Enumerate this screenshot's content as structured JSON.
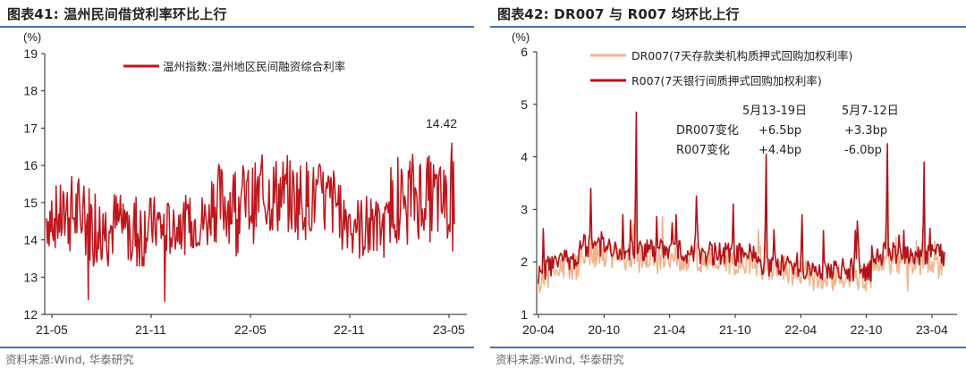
{
  "left": {
    "title": "图表41:  温州民间借贷利率环比上行",
    "source": "资料来源:Wind, 华泰研究",
    "chart_data": {
      "type": "line",
      "unit": "(%)",
      "x_ticks": [
        "21-05",
        "21-11",
        "22-05",
        "22-11",
        "23-05"
      ],
      "ylim": [
        12,
        19
      ],
      "y_ticks": [
        12,
        13,
        14,
        15,
        16,
        17,
        18,
        19
      ],
      "series": [
        {
          "name": "温州指数:温州地区民间融资综合利率",
          "color": "#c0161c",
          "description": "weekly-ish noisy series; segments of approximate level/range by month",
          "segments": [
            {
              "x": "2021-05",
              "level": 14.6,
              "amp": 0.9
            },
            {
              "x": "2021-06",
              "level": 14.7,
              "amp": 1.1
            },
            {
              "x": "2021-07",
              "level": 14.5,
              "amp": 1.1
            },
            {
              "x": "2021-08",
              "level": 14.3,
              "amp": 1.0
            },
            {
              "x": "2021-09",
              "level": 14.4,
              "amp": 1.0
            },
            {
              "x": "2021-10",
              "level": 14.2,
              "amp": 1.2
            },
            {
              "x": "2021-11",
              "level": 14.4,
              "amp": 0.8
            },
            {
              "x": "2021-12",
              "level": 14.3,
              "amp": 0.8
            },
            {
              "x": "2022-01",
              "level": 14.4,
              "amp": 0.8
            },
            {
              "x": "2022-02",
              "level": 14.5,
              "amp": 0.8
            },
            {
              "x": "2022-03",
              "level": 15.0,
              "amp": 1.1
            },
            {
              "x": "2022-04",
              "level": 15.0,
              "amp": 1.1
            },
            {
              "x": "2022-05",
              "level": 15.0,
              "amp": 1.1
            },
            {
              "x": "2022-06",
              "level": 15.2,
              "amp": 1.1
            },
            {
              "x": "2022-07",
              "level": 15.2,
              "amp": 1.1
            },
            {
              "x": "2022-08",
              "level": 15.1,
              "amp": 1.1
            },
            {
              "x": "2022-09",
              "level": 15.1,
              "amp": 1.0
            },
            {
              "x": "2022-10",
              "level": 15.0,
              "amp": 1.0
            },
            {
              "x": "2022-11",
              "level": 14.6,
              "amp": 0.9
            },
            {
              "x": "2022-12",
              "level": 14.3,
              "amp": 0.9
            },
            {
              "x": "2023-01",
              "level": 14.3,
              "amp": 0.8
            },
            {
              "x": "2023-02",
              "level": 15.0,
              "amp": 1.1
            },
            {
              "x": "2023-03",
              "level": 15.2,
              "amp": 1.2
            },
            {
              "x": "2023-04",
              "level": 15.1,
              "amp": 1.2
            },
            {
              "x": "2023-05",
              "level": 15.0,
              "amp": 1.1
            }
          ],
          "min_points": [
            13.4,
            12.3
          ],
          "last_value": 14.42
        }
      ],
      "annotations": [
        "14.42"
      ]
    }
  },
  "right": {
    "title": "图表42:  DR007 与 R007 均环比上行",
    "source": "资料来源:Wind, 华泰研究",
    "chart_data": {
      "type": "line",
      "unit": "(%)",
      "x_ticks": [
        "20-04",
        "20-10",
        "21-04",
        "21-10",
        "22-04",
        "22-10",
        "23-04"
      ],
      "ylim": [
        1,
        6
      ],
      "y_ticks": [
        1,
        2,
        3,
        4,
        5,
        6
      ],
      "series": [
        {
          "name": "DR007(7天存款类机构质押式回购加权利率)",
          "color": "#f2b48c",
          "base_level": 2.0
        },
        {
          "name": "R007(7天银行间质押式回购加权利率)",
          "color": "#b3121a",
          "base_level": 2.1,
          "spikes": [
            {
              "x": "2020-12",
              "value": 4.8
            },
            {
              "x": "2021-12",
              "value": 4.0
            },
            {
              "x": "2022-12",
              "value": 4.2
            },
            {
              "x": "2023-03",
              "value": 3.9
            }
          ]
        }
      ],
      "annotation_table": {
        "columns": [
          "5月13-19日",
          "5月7-12日"
        ],
        "rows": [
          {
            "label": "DR007变化",
            "values": [
              "+6.5bp",
              "+3.3bp"
            ]
          },
          {
            "label": "R007变化",
            "values": [
              "+4.4bp",
              "-6.0bp"
            ]
          }
        ]
      }
    }
  },
  "watermark": "资 料 来 源"
}
